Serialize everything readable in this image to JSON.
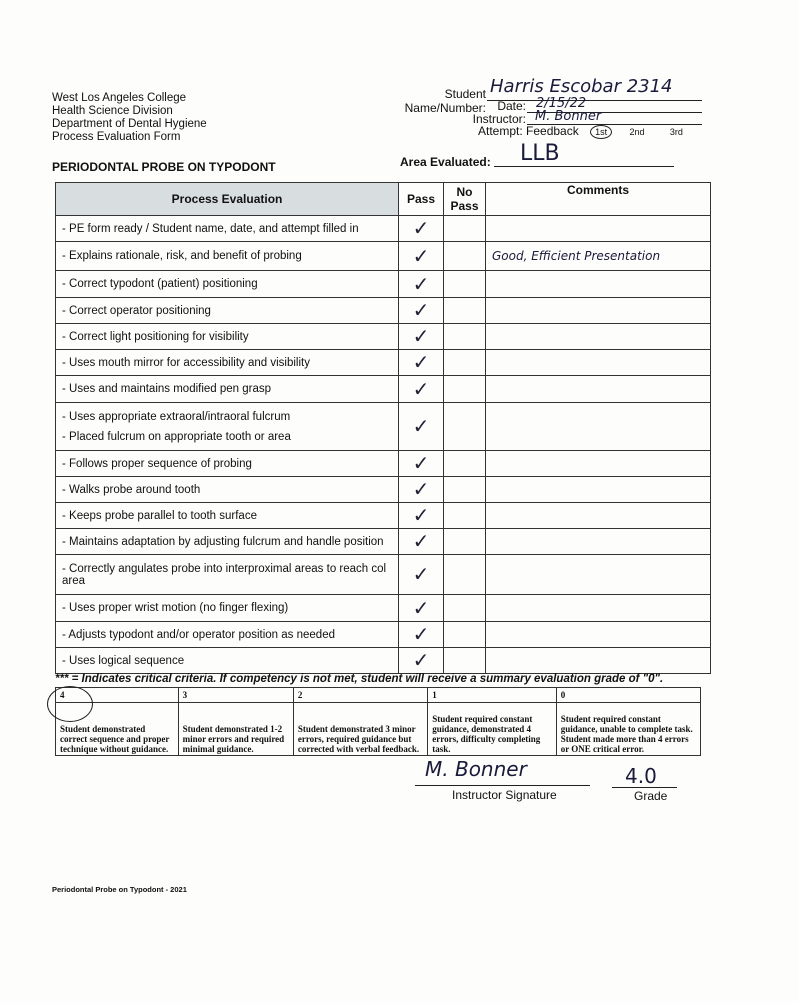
{
  "header": {
    "college": "West Los Angeles College",
    "division": "Health Science Division",
    "department": "Department of Dental Hygiene",
    "form": "Process Evaluation Form",
    "title": "PERIODONTAL PROBE ON TYPODONT"
  },
  "student": {
    "name_label": "Student Name/Number:",
    "name_value": "Harris Escobar 2314",
    "date_label": "Date:",
    "date_value": "2/15/22",
    "instructor_label": "Instructor:",
    "instructor_value": "M. Bonner",
    "attempt_label": "Attempt:",
    "attempt_options": [
      "Feedback",
      "1st",
      "2nd",
      "3rd"
    ],
    "attempt_selected": "1st",
    "area_label": "Area Evaluated:",
    "area_value": "LLB"
  },
  "table": {
    "headers": [
      "Process Evaluation",
      "Pass",
      "No Pass",
      "Comments"
    ],
    "rows": [
      {
        "text": "- PE form ready / Student name, date, and attempt filled in",
        "pass": "✓",
        "comment": ""
      },
      {
        "text": "- Explains rationale, risk, and benefit of probing",
        "pass": "✓",
        "comment": "Good, Efficient Presentation"
      },
      {
        "text": "- Correct typodont (patient) positioning",
        "pass": "✓",
        "comment": ""
      },
      {
        "text": "- Correct operator positioning",
        "pass": "✓",
        "comment": ""
      },
      {
        "text": "- Correct light positioning for visibility",
        "pass": "✓",
        "comment": ""
      },
      {
        "text": "- Uses mouth mirror for accessibility and visibility",
        "pass": "✓",
        "comment": ""
      },
      {
        "text": "- Uses and maintains modified pen grasp",
        "pass": "✓",
        "comment": ""
      },
      {
        "text": "- Uses appropriate extraoral/intraoral fulcrum",
        "text2": "- Placed fulcrum on appropriate tooth or area",
        "pass": "✓",
        "comment": ""
      },
      {
        "text": "- Follows proper sequence of probing",
        "pass": "✓",
        "comment": ""
      },
      {
        "text": "- Walks probe around tooth",
        "pass": "✓",
        "comment": ""
      },
      {
        "text": "- Keeps probe parallel to tooth surface",
        "pass": "✓",
        "comment": ""
      },
      {
        "text": "- Maintains adaptation by adjusting fulcrum and handle position",
        "pass": "✓",
        "comment": ""
      },
      {
        "text": "- Correctly angulates probe into interproximal areas to reach col area",
        "pass": "✓",
        "comment": ""
      },
      {
        "text": "- Uses proper wrist motion (no finger flexing)",
        "pass": "✓",
        "comment": ""
      },
      {
        "text": "- Adjusts typodont and/or operator position as needed",
        "pass": "✓",
        "comment": ""
      },
      {
        "text": "- Uses logical sequence",
        "pass": "✓",
        "comment": ""
      }
    ]
  },
  "critical_note": "*** = Indicates critical criteria.  If competency is not met, student will receive a summary evaluation grade of \"0\".",
  "rubric": [
    {
      "score": "4",
      "desc": "Student demonstrated correct sequence and proper technique without guidance."
    },
    {
      "score": "3",
      "desc": "Student demonstrated 1-2 minor errors and required minimal guidance."
    },
    {
      "score": "2",
      "desc": "Student demonstrated 3 minor errors, required guidance but corrected with verbal feedback."
    },
    {
      "score": "1",
      "desc": "Student required constant guidance, demonstrated 4 errors, difficulty completing task."
    },
    {
      "score": "0",
      "desc": "Student required constant guidance, unable to complete task. Student made more than 4 errors or ONE critical error."
    }
  ],
  "rubric_selected": "4",
  "signature": {
    "label": "Instructor Signature",
    "value": "M. Bonner"
  },
  "grade": {
    "label": "Grade",
    "value": "4.0"
  },
  "footer": "Periodontal Probe on Typodont - 2021"
}
